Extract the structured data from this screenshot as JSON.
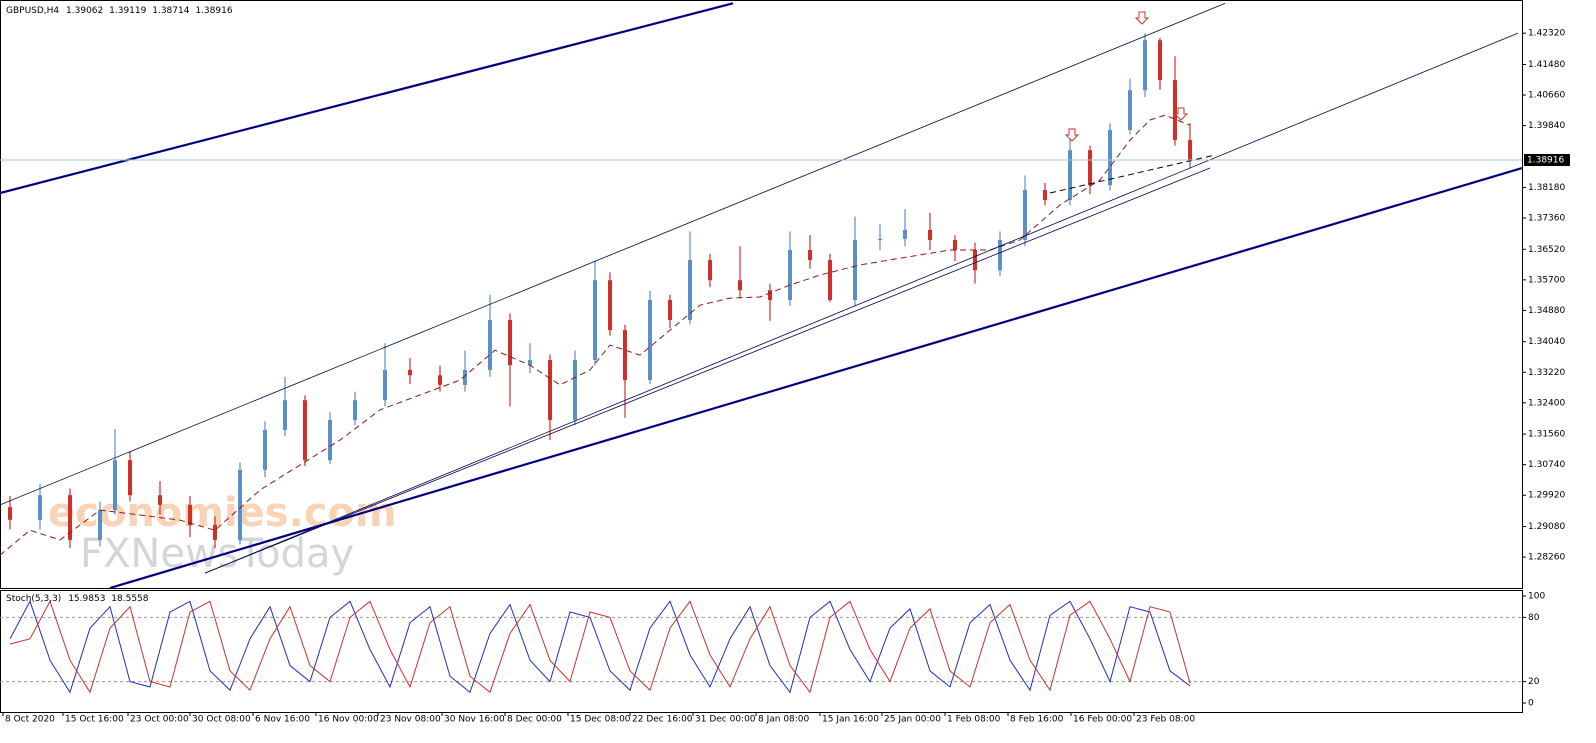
{
  "header": {
    "symbol": "GBPUSD,H4",
    "values": [
      1.39062,
      1.39119,
      1.38714,
      1.38916
    ]
  },
  "watermark": [
    "economies.com",
    "FXNewsToday"
  ],
  "chart_data": [
    {
      "type": "candlestick",
      "bull_color": "#5b8fc7",
      "bear_color": "#d0302b",
      "xlim": [
        0,
        152.2
      ],
      "ylim": [
        1.2743,
        1.4321
      ],
      "yticks": [
        {
          "value": 1.4232,
          "label": "1.42320"
        },
        {
          "value": 1.4148,
          "label": "1.41480"
        },
        {
          "value": 1.4066,
          "label": "1.40660"
        },
        {
          "value": 1.3984,
          "label": "1.39840"
        },
        {
          "value": 1.3818,
          "label": "1.38180"
        },
        {
          "value": 1.3736,
          "label": "1.37360"
        },
        {
          "value": 1.3652,
          "label": "1.36520"
        },
        {
          "value": 1.357,
          "label": "1.35700"
        },
        {
          "value": 1.3488,
          "label": "1.34880"
        },
        {
          "value": 1.3404,
          "label": "1.34040"
        },
        {
          "value": 1.3322,
          "label": "1.33220"
        },
        {
          "value": 1.324,
          "label": "1.32400"
        },
        {
          "value": 1.3156,
          "label": "1.31560"
        },
        {
          "value": 1.3074,
          "label": "1.30740"
        },
        {
          "value": 1.2992,
          "label": "1.29920"
        },
        {
          "value": 1.2908,
          "label": "1.29080"
        },
        {
          "value": 1.2826,
          "label": "1.28260"
        }
      ],
      "x": [
        1,
        4,
        7,
        10,
        11.5,
        13,
        16,
        19,
        21.5,
        24,
        26.5,
        28.5,
        30.5,
        33,
        35.5,
        38.5,
        41,
        44,
        46.5,
        49,
        51,
        53,
        55,
        57.5,
        59.5,
        61,
        62.5,
        65,
        67,
        69,
        71,
        74,
        77,
        79,
        81,
        83,
        85.5,
        88,
        90.5,
        93,
        95.5,
        97.5,
        100,
        102.5,
        104.5,
        107,
        109,
        111,
        113,
        114.5,
        116,
        117.5,
        119
      ],
      "open": [
        1.296,
        1.2926,
        1.2992,
        1.2872,
        1.2952,
        1.3086,
        1.2992,
        1.2966,
        1.2912,
        1.2872,
        1.306,
        1.3167,
        1.3247,
        1.3086,
        1.3194,
        1.3247,
        1.3328,
        1.3314,
        1.3288,
        1.3328,
        1.3462,
        1.3341,
        1.3355,
        1.3194,
        1.3355,
        1.3569,
        1.3435,
        1.3301,
        1.3516,
        1.3462,
        1.3623,
        1.3569,
        1.3542,
        1.3516,
        1.365,
        1.3623,
        1.3516,
        1.3677,
        1.368,
        1.3704,
        1.3677,
        1.365,
        1.3596,
        1.3677,
        1.3811,
        1.3784,
        1.3918,
        1.3824,
        1.3972,
        1.4079,
        1.4213,
        1.4106,
        1.3945
      ],
      "high": [
        1.299,
        1.3022,
        1.301,
        1.2975,
        1.317,
        1.311,
        1.303,
        1.299,
        1.2935,
        1.308,
        1.319,
        1.331,
        1.326,
        1.3215,
        1.327,
        1.34,
        1.336,
        1.334,
        1.338,
        1.353,
        1.348,
        1.34,
        1.337,
        1.338,
        1.362,
        1.359,
        1.345,
        1.354,
        1.353,
        1.37,
        1.364,
        1.366,
        1.356,
        1.37,
        1.369,
        1.364,
        1.374,
        1.372,
        1.376,
        1.375,
        1.369,
        1.367,
        1.37,
        1.385,
        1.383,
        1.395,
        1.393,
        1.399,
        1.411,
        1.4232,
        1.422,
        1.417,
        1.399
      ],
      "low": [
        1.29,
        1.29,
        1.285,
        1.2855,
        1.294,
        1.2975,
        1.294,
        1.288,
        1.285,
        1.286,
        1.304,
        1.315,
        1.307,
        1.3075,
        1.318,
        1.323,
        1.329,
        1.327,
        1.327,
        1.331,
        1.323,
        1.332,
        1.314,
        1.318,
        1.334,
        1.342,
        1.32,
        1.329,
        1.344,
        1.345,
        1.355,
        1.352,
        1.346,
        1.35,
        1.36,
        1.351,
        1.35,
        1.365,
        1.366,
        1.365,
        1.362,
        1.356,
        1.358,
        1.366,
        1.377,
        1.377,
        1.38,
        1.381,
        1.396,
        1.406,
        1.408,
        1.393,
        1.38714
      ],
      "close": [
        1.2926,
        1.2992,
        1.2872,
        1.2952,
        1.3086,
        1.2992,
        1.2966,
        1.2912,
        1.2872,
        1.306,
        1.3167,
        1.3247,
        1.3086,
        1.3194,
        1.3247,
        1.3328,
        1.3314,
        1.3288,
        1.3328,
        1.3462,
        1.3341,
        1.3355,
        1.3194,
        1.3355,
        1.3569,
        1.3435,
        1.3301,
        1.3516,
        1.3462,
        1.3623,
        1.3569,
        1.3542,
        1.3516,
        1.365,
        1.3623,
        1.3516,
        1.3677,
        1.368,
        1.3704,
        1.3677,
        1.365,
        1.3596,
        1.3677,
        1.3811,
        1.3784,
        1.3918,
        1.3824,
        1.3972,
        1.4079,
        1.4213,
        1.4106,
        1.3945,
        1.38916
      ],
      "series": [
        {
          "color": "#8b1a1a",
          "dash": true,
          "x": [
            0,
            3,
            6,
            10,
            14,
            18,
            21.5,
            26,
            30,
            34,
            38,
            42,
            46,
            49.5,
            53,
            56,
            59,
            61,
            64,
            67,
            70,
            73,
            76,
            79,
            82,
            86,
            90,
            95,
            99,
            102,
            106,
            110,
            113,
            115,
            116.5,
            119
          ],
          "values": [
            1.2831,
            1.2898,
            1.2872,
            1.2952,
            1.2939,
            1.2925,
            1.2898,
            1.3006,
            1.3073,
            1.314,
            1.3221,
            1.3261,
            1.3301,
            1.3381,
            1.3341,
            1.3288,
            1.3328,
            1.3395,
            1.3368,
            1.3435,
            1.3502,
            1.3521,
            1.3524,
            1.3556,
            1.3583,
            1.361,
            1.3628,
            1.365,
            1.365,
            1.3677,
            1.3771,
            1.3838,
            1.3945,
            1.3999,
            1.4012,
            1.3985
          ]
        }
      ],
      "trend_lines": [
        {
          "x": [
            0,
            73.3
          ],
          "y": [
            1.3803,
            1.4312
          ],
          "color": "#000080",
          "width": 2.2
        },
        {
          "x": [
            0,
            122.5
          ],
          "y": [
            1.2966,
            1.4312
          ],
          "color": "#000050",
          "width": 0.8
        },
        {
          "x": [
            20.5,
            151.8
          ],
          "y": [
            1.2783,
            1.4232
          ],
          "color": "#000050",
          "width": 0.8
        },
        {
          "x": [
            20.5,
            121
          ],
          "y": [
            1.2783,
            1.387
          ],
          "color": "#000050",
          "width": 0.8
        },
        {
          "x": [
            11,
            152.2
          ],
          "y": [
            1.2743,
            1.387
          ],
          "color": "#000080",
          "width": 2.2
        },
        {
          "x": [
            105,
            121.5
          ],
          "y": [
            1.3803,
            1.3905
          ],
          "color": "#000000",
          "width": 1,
          "dash": true
        }
      ]
    },
    {
      "type": "line",
      "label": "Stoch(5,3,3)",
      "xlim": [
        0,
        152.2
      ],
      "ylim": [
        -8.4,
        105.6
      ],
      "yticks": [
        0,
        20,
        80,
        100
      ],
      "levels": [
        20,
        80
      ],
      "xticks": [
        {
          "value": 0.3,
          "label": "8 Oct 2020"
        },
        {
          "value": 6.3,
          "label": "15 Oct 16:00"
        },
        {
          "value": 12.8,
          "label": "23 Oct 00:00"
        },
        {
          "value": 19,
          "label": "30 Oct 08:00"
        },
        {
          "value": 25.3,
          "label": "6 Nov 16:00"
        },
        {
          "value": 31.6,
          "label": "16 Nov 00:00"
        },
        {
          "value": 37.8,
          "label": "23 Nov 08:00"
        },
        {
          "value": 44.2,
          "label": "30 Nov 16:00"
        },
        {
          "value": 50.5,
          "label": "8 Dec 00:00"
        },
        {
          "value": 56.8,
          "label": "15 Dec 08:00"
        },
        {
          "value": 63,
          "label": "22 Dec 16:00"
        },
        {
          "value": 69.3,
          "label": "31 Dec 00:00"
        },
        {
          "value": 75.6,
          "label": "8 Jan 08:00"
        },
        {
          "value": 82,
          "label": "15 Jan 16:00"
        },
        {
          "value": 88.2,
          "label": "25 Jan 00:00"
        },
        {
          "value": 94.5,
          "label": "1 Feb 08:00"
        },
        {
          "value": 100.8,
          "label": "8 Feb 16:00"
        },
        {
          "value": 107.1,
          "label": "16 Feb 00:00"
        },
        {
          "value": 113.4,
          "label": "23 Feb 08:00"
        }
      ],
      "x": [
        1,
        3,
        5,
        7,
        9,
        11,
        13,
        15,
        17,
        19,
        21,
        23,
        25,
        27,
        29,
        31,
        33,
        35,
        37,
        39,
        41,
        43,
        45,
        47,
        49,
        51,
        53,
        55,
        57,
        59,
        61,
        63,
        65,
        67,
        69,
        71,
        73,
        75,
        77,
        79,
        81,
        83,
        85,
        87,
        89,
        91,
        93,
        95,
        97,
        99,
        101,
        103,
        105,
        107,
        109,
        111,
        113,
        115,
        117,
        119
      ],
      "series": [
        {
          "color": "#1f2fbf",
          "values": [
            60,
            95,
            40,
            10,
            70,
            90,
            20,
            15,
            85,
            95,
            30,
            12,
            60,
            90,
            35,
            20,
            80,
            95,
            50,
            15,
            75,
            90,
            25,
            10,
            65,
            92,
            40,
            20,
            85,
            80,
            30,
            12,
            70,
            95,
            45,
            15,
            60,
            90,
            35,
            10,
            80,
            95,
            50,
            20,
            70,
            88,
            30,
            15,
            75,
            92,
            40,
            12,
            82,
            95,
            60,
            20,
            90,
            85,
            30,
            15.9853
          ]
        },
        {
          "color": "#d0302b",
          "values": [
            55,
            60,
            95,
            40,
            10,
            70,
            90,
            20,
            15,
            85,
            95,
            30,
            12,
            60,
            90,
            35,
            20,
            80,
            95,
            50,
            15,
            75,
            90,
            25,
            10,
            65,
            92,
            40,
            20,
            85,
            80,
            30,
            12,
            70,
            95,
            45,
            15,
            60,
            90,
            35,
            10,
            80,
            95,
            50,
            20,
            70,
            88,
            30,
            15,
            75,
            92,
            40,
            12,
            82,
            95,
            60,
            20,
            90,
            85,
            18.5558
          ]
        }
      ]
    }
  ]
}
